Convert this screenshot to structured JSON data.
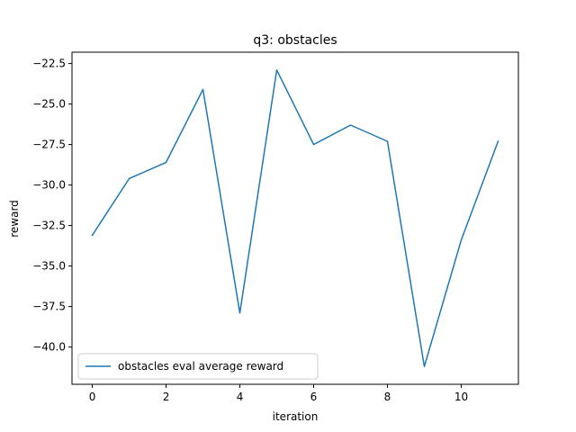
{
  "chart_data": {
    "type": "line",
    "title": "q3: obstacles",
    "xlabel": "iteration",
    "ylabel": "reward",
    "xlim": [
      -0.55,
      11.55
    ],
    "ylim": [
      -42.3,
      -21.8
    ],
    "xticks": [
      0,
      2,
      4,
      6,
      8,
      10
    ],
    "xtick_labels": [
      "0",
      "2",
      "4",
      "6",
      "8",
      "10"
    ],
    "yticks": [
      -22.5,
      -25.0,
      -27.5,
      -30.0,
      -32.5,
      -35.0,
      -37.5,
      -40.0
    ],
    "ytick_labels": [
      "−22.5",
      "−25.0",
      "−27.5",
      "−30.0",
      "−32.5",
      "−35.0",
      "−37.5",
      "−40.0"
    ],
    "grid": false,
    "legend_position": "lower-left",
    "series": [
      {
        "name": "obstacles eval average reward",
        "color": "#1f77b4",
        "x": [
          0,
          1,
          2,
          3,
          4,
          5,
          6,
          7,
          8,
          9,
          10,
          11
        ],
        "values": [
          -33.1,
          -29.6,
          -28.6,
          -24.1,
          -37.9,
          -22.9,
          -27.5,
          -26.3,
          -27.3,
          -41.2,
          -33.4,
          -27.3
        ]
      }
    ]
  }
}
